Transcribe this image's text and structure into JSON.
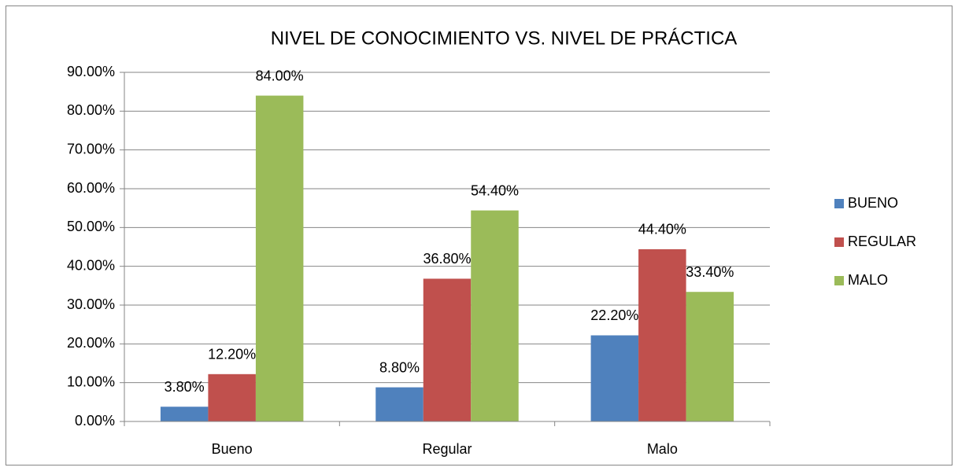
{
  "chart_data": {
    "type": "bar",
    "title": "NIVEL DE CONOCIMIENTO VS. NIVEL DE PRÁCTICA",
    "categories": [
      "Bueno",
      "Regular",
      "Malo"
    ],
    "series": [
      {
        "name": "BUENO",
        "color": "#4f81bd",
        "values": [
          3.8,
          8.8,
          22.2
        ],
        "value_labels": [
          "3.80%",
          "8.80%",
          "22.20%"
        ]
      },
      {
        "name": "REGULAR",
        "color": "#c0504d",
        "values": [
          12.2,
          36.8,
          44.4
        ],
        "value_labels": [
          "12.20%",
          "36.80%",
          "44.40%"
        ]
      },
      {
        "name": "MALO",
        "color": "#9bbb59",
        "values": [
          84,
          54.4,
          33.4
        ],
        "value_labels": [
          "84.00%",
          "54.40%",
          "33.40%"
        ]
      }
    ],
    "ylim": [
      0,
      90
    ],
    "yticks": [
      {
        "value": 0,
        "label": "0.00%"
      },
      {
        "value": 10,
        "label": "10.00%"
      },
      {
        "value": 20,
        "label": "20.00%"
      },
      {
        "value": 30,
        "label": "30.00%"
      },
      {
        "value": 40,
        "label": "40.00%"
      },
      {
        "value": 50,
        "label": "50.00%"
      },
      {
        "value": 60,
        "label": "60.00%"
      },
      {
        "value": 70,
        "label": "70.00%"
      },
      {
        "value": 80,
        "label": "80.00%"
      },
      {
        "value": 90,
        "label": "90.00%"
      }
    ],
    "grid": true,
    "legend": "right"
  }
}
